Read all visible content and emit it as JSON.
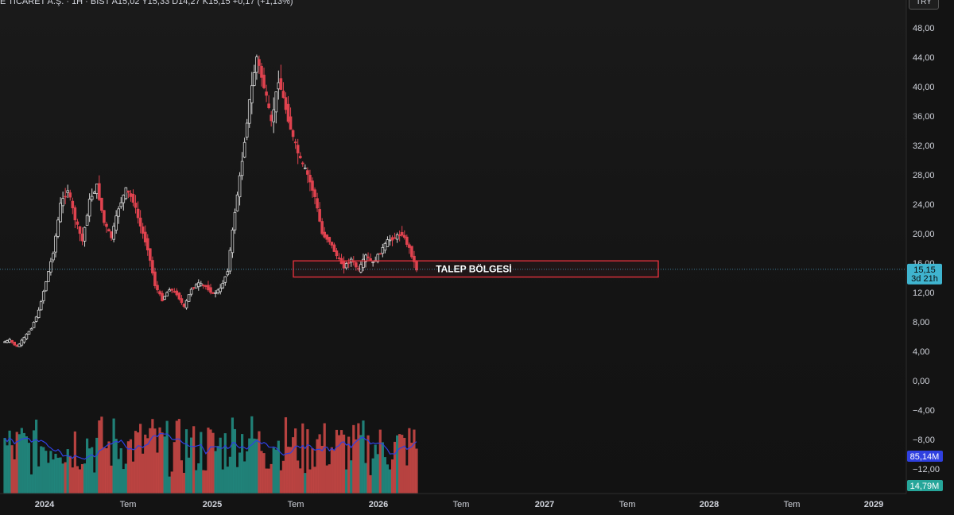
{
  "header": {
    "text": "E TİCARET A.Ş. · 1H · BIST  A15,02  Y15,33  D14,27  K15,15  +0,17 (+1,13%)",
    "currency_button": "TRY"
  },
  "colors": {
    "up": "#d8d8d8",
    "down": "#e0434f",
    "vol_up": "#26a69a",
    "vol_down": "#ef5350",
    "vol_ma": "#2f40e0",
    "price_line": "#4da3c7",
    "zone": "#e0303c"
  },
  "chart_data": {
    "type": "candlestick",
    "y_axis": {
      "ticks": [
        "48,00",
        "44,00",
        "40,00",
        "36,00",
        "32,00",
        "28,00",
        "24,00",
        "20,00",
        "16,00",
        "12,00",
        "8,00",
        "4,00",
        "0,00",
        "−4,00",
        "−8,00",
        "−12,00"
      ],
      "range": [
        -16,
        50
      ]
    },
    "x_axis": {
      "labels": [
        "2024",
        "Tem",
        "2025",
        "Tem",
        "2026",
        "Tem",
        "2027",
        "Tem",
        "2028",
        "Tem",
        "2029"
      ]
    },
    "last_price": {
      "value": "15,15",
      "countdown": "3d 21h",
      "y": 15.15
    },
    "volume_ma_label": "85,14M",
    "volume_label": "14,79M",
    "annotation": {
      "text": "TALEP BÖLGESİ",
      "y_top": 16.3,
      "y_bottom": 14.1
    },
    "price_path": [
      5.2,
      5.5,
      4.6,
      5.8,
      7.2,
      9.5,
      13.5,
      17.5,
      24.0,
      26.0,
      22.0,
      19.0,
      24.5,
      26.5,
      21.5,
      19.5,
      23.5,
      26.0,
      24.5,
      21.0,
      18.0,
      13.0,
      11.0,
      12.5,
      11.8,
      10.0,
      12.5,
      13.2,
      12.8,
      11.8,
      12.5,
      15.0,
      23.0,
      30.0,
      38.0,
      44.0,
      40.0,
      35.0,
      41.0,
      37.0,
      33.0,
      30.0,
      28.0,
      25.0,
      20.0,
      19.0,
      17.0,
      15.5,
      16.5,
      15.0,
      17.0,
      16.0,
      17.5,
      19.0,
      19.5,
      20.0,
      18.0,
      15.15
    ]
  }
}
